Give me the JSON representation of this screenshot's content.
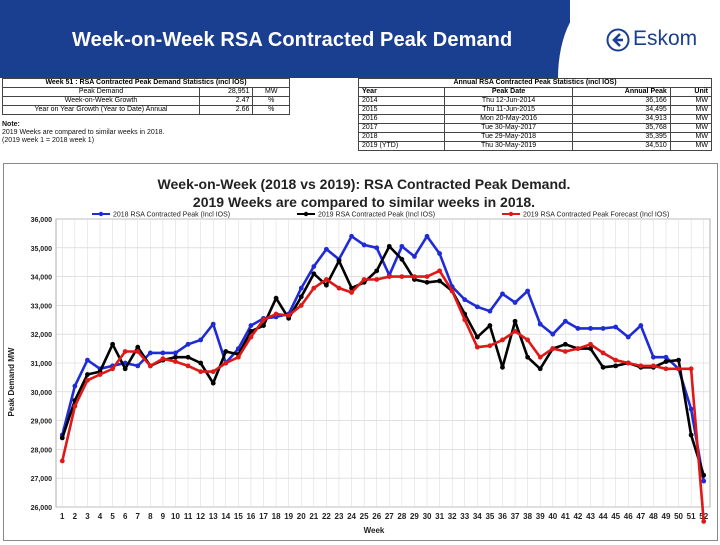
{
  "slide": {
    "title": "Week-on-Week RSA Contracted Peak Demand",
    "logo_text": "Eskom",
    "logo_icon": "eskom-logo-icon",
    "bar_color": "#1b3f90"
  },
  "stats_table": {
    "title": "Week 51 : RSA Contracted Peak Demand Statistics (incl IOS)",
    "rows": [
      [
        "Peak Demand",
        "28,951",
        "MW"
      ],
      [
        "Week-on-Week Growth",
        "2.47",
        "%"
      ],
      [
        "Year on Year Growth (Year to Date) Annual",
        "2.66",
        "%"
      ]
    ]
  },
  "notes": {
    "line1": "Note:",
    "line2": "2019 Weeks are compared to similar weeks in 2018.",
    "line3": "(2019 week 1 = 2018 week 1)"
  },
  "annual_table": {
    "title": "Annual RSA Contracted Peak Statistics (incl IOS)",
    "headers": [
      "Year",
      "Peak Date",
      "Annual Peak",
      "Unit"
    ],
    "rows": [
      [
        "2014",
        "Thu 12-Jun-2014",
        "36,166",
        "MW"
      ],
      [
        "2015",
        "Thu 11-Jun-2015",
        "34,495",
        "MW"
      ],
      [
        "2016",
        "Mon 20-May-2016",
        "34,913",
        "MW"
      ],
      [
        "2017",
        "Tue 30-May-2017",
        "35,768",
        "MW"
      ],
      [
        "2018",
        "Tue 29-May-2018",
        "35,395",
        "MW"
      ],
      [
        "2019 (YTD)",
        "Thu 30-May-2019",
        "34,510",
        "MW"
      ]
    ]
  },
  "chart_data": {
    "type": "line",
    "title": "Week-on-Week (2018 vs 2019): RSA Contracted Peak Demand.",
    "subtitle": "2019 Weeks are compared to similar weeks in 2018.",
    "xlabel": "Week",
    "ylabel": "Peak Demand MW",
    "ylim": [
      26000,
      36000
    ],
    "yticks": [
      "26,000",
      "27,000",
      "28,000",
      "29,000",
      "30,000",
      "31,000",
      "32,000",
      "33,000",
      "34,000",
      "35,000",
      "36,000"
    ],
    "categories": [
      "1",
      "2",
      "3",
      "4",
      "5",
      "6",
      "7",
      "8",
      "9",
      "10",
      "11",
      "12",
      "13",
      "14",
      "15",
      "16",
      "17",
      "18",
      "19",
      "20",
      "21",
      "22",
      "23",
      "24",
      "25",
      "26",
      "27",
      "28",
      "29",
      "30",
      "31",
      "32",
      "33",
      "34",
      "35",
      "36",
      "37",
      "38",
      "39",
      "40",
      "41",
      "42",
      "43",
      "44",
      "45",
      "46",
      "47",
      "48",
      "49",
      "50",
      "51",
      "52"
    ],
    "grid": true,
    "legend_position": "top",
    "series": [
      {
        "name": "2018 RSA Contracted Peak (Incl IOS)",
        "color": "#1f2bd6",
        "values": [
          28500,
          30200,
          31100,
          30800,
          30900,
          31000,
          30900,
          31350,
          31350,
          31350,
          31650,
          31800,
          32350,
          31000,
          31500,
          32300,
          32550,
          32600,
          32700,
          33600,
          34350,
          34950,
          34600,
          35400,
          35100,
          35000,
          34050,
          35050,
          34700,
          35400,
          34800,
          33650,
          33200,
          32950,
          32800,
          33400,
          33100,
          33500,
          32350,
          32000,
          32450,
          32200,
          32200,
          32200,
          32250,
          31900,
          32300,
          31200,
          31200,
          30800,
          29400,
          26900
        ]
      },
      {
        "name": "2019 RSA Contracted Peak (Incl IOS)",
        "color": "#000000",
        "values": [
          28400,
          29700,
          30600,
          30700,
          31650,
          30800,
          31550,
          30900,
          31100,
          31200,
          31200,
          31000,
          30300,
          31400,
          31300,
          32100,
          32300,
          33250,
          32550,
          33300,
          34100,
          33700,
          34550,
          33600,
          33800,
          34200,
          35050,
          34600,
          33900,
          33800,
          33850,
          33500,
          32700,
          31900,
          32300,
          30850,
          32450,
          31200,
          30800,
          31500,
          31650,
          31500,
          31500,
          30850,
          30900,
          31000,
          30850,
          30850,
          31050,
          31100,
          28500,
          27100
        ]
      },
      {
        "name": "2019 RSA Contracted Peak Forecast (Incl IOS)",
        "color": "#e01818",
        "values": [
          27600,
          29500,
          30400,
          30600,
          30800,
          31400,
          31400,
          30900,
          31150,
          31050,
          30900,
          30700,
          30700,
          31000,
          31200,
          31900,
          32500,
          32700,
          32650,
          33000,
          33600,
          33900,
          33600,
          33450,
          33900,
          33900,
          34000,
          34000,
          34000,
          34000,
          34200,
          33500,
          32500,
          31550,
          31600,
          31800,
          32100,
          31800,
          31200,
          31500,
          31400,
          31500,
          31650,
          31350,
          31100,
          31000,
          30900,
          30900,
          30800,
          30800,
          30800,
          25500
        ]
      }
    ]
  }
}
